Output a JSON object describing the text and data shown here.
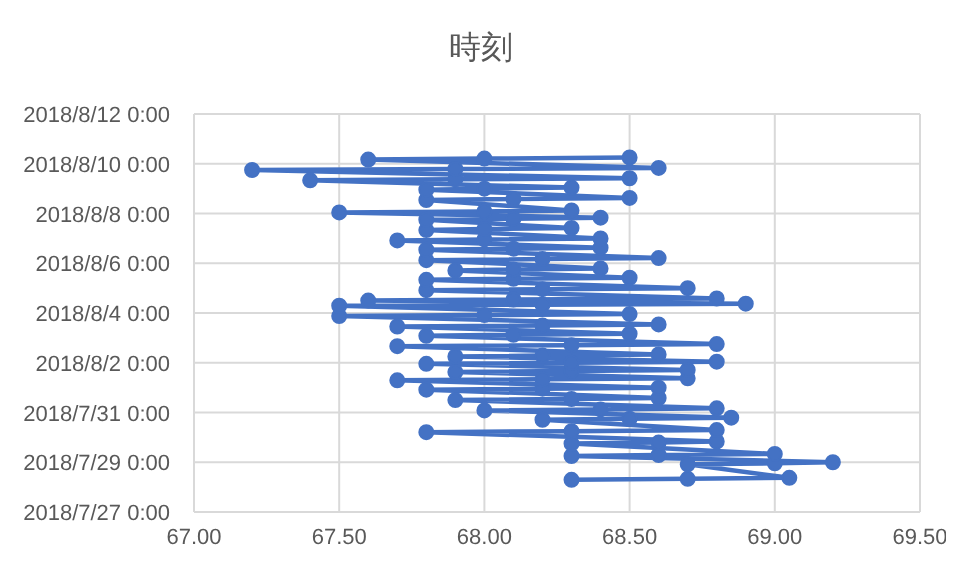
{
  "chart_data": {
    "type": "line",
    "orientation": "horizontal",
    "title": "時刻",
    "color": "#4472c4",
    "marker": "circle",
    "grid": true,
    "xlim": [
      67,
      69.5
    ],
    "xticks": [
      {
        "value": 67,
        "label": "67.00"
      },
      {
        "value": 67.5,
        "label": "67.50"
      },
      {
        "value": 68,
        "label": "68.00"
      },
      {
        "value": 68.5,
        "label": "68.50"
      },
      {
        "value": 69,
        "label": "69.00"
      },
      {
        "value": 69.5,
        "label": "69.50"
      }
    ],
    "ylim": [
      "2018-07-27T00:00",
      "2018-08-12T00:00"
    ],
    "yticks": [
      {
        "value": "2018-07-27T00:00",
        "label": "2018/7/27 0:00"
      },
      {
        "value": "2018-07-29T00:00",
        "label": "2018/7/29 0:00"
      },
      {
        "value": "2018-07-31T00:00",
        "label": "2018/7/31 0:00"
      },
      {
        "value": "2018-08-02T00:00",
        "label": "2018/8/2 0:00"
      },
      {
        "value": "2018-08-04T00:00",
        "label": "2018/8/4 0:00"
      },
      {
        "value": "2018-08-06T00:00",
        "label": "2018/8/6 0:00"
      },
      {
        "value": "2018-08-08T00:00",
        "label": "2018/8/8 0:00"
      },
      {
        "value": "2018-08-10T00:00",
        "label": "2018/8/10 0:00"
      },
      {
        "value": "2018-08-12T00:00",
        "label": "2018/8/12 0:00"
      }
    ],
    "values": [
      68.3,
      68.7,
      69.05,
      68.7,
      69.0,
      69.2,
      68.3,
      68.6,
      69.0,
      68.3,
      68.6,
      68.8,
      67.8,
      68.3,
      68.8,
      68.2,
      68.5,
      68.85,
      68.0,
      68.4,
      68.8,
      67.9,
      68.3,
      68.6,
      67.8,
      68.2,
      68.6,
      67.7,
      68.2,
      68.7,
      67.9,
      68.3,
      68.7,
      67.8,
      68.3,
      68.8,
      67.9,
      68.2,
      68.6,
      67.7,
      68.3,
      68.8,
      67.8,
      68.1,
      68.5,
      67.7,
      68.2,
      68.6,
      67.5,
      68.0,
      68.5,
      67.5,
      68.2,
      68.9,
      67.6,
      68.1,
      68.8,
      67.8,
      68.2,
      68.7,
      67.8,
      68.1,
      68.5,
      67.9,
      68.1,
      68.4,
      67.8,
      68.2,
      68.6,
      67.8,
      68.1,
      68.4,
      67.7,
      68.0,
      68.4,
      67.8,
      68.0,
      68.3,
      67.8,
      68.1,
      68.4,
      67.5,
      68.0,
      68.3,
      67.8,
      68.1,
      68.5,
      67.8,
      68.0,
      68.3,
      67.4,
      67.9,
      68.5,
      67.2,
      67.9,
      68.6,
      67.6,
      68.0,
      68.5
    ],
    "x": [
      "2018-07-28T07:00",
      "2018-07-28T08:00",
      "2018-07-28T09:00",
      "2018-07-28T22:00",
      "2018-07-28T23:00",
      "2018-07-29T00:00",
      "2018-07-29T06:00",
      "2018-07-29T07:00",
      "2018-07-29T08:00",
      "2018-07-29T18:00",
      "2018-07-29T19:00",
      "2018-07-29T20:00",
      "2018-07-30T05:00",
      "2018-07-30T06:00",
      "2018-07-30T07:00",
      "2018-07-30T17:00",
      "2018-07-30T18:00",
      "2018-07-30T19:00",
      "2018-07-31T02:00",
      "2018-07-31T03:00",
      "2018-07-31T04:00",
      "2018-07-31T12:00",
      "2018-07-31T13:00",
      "2018-07-31T14:00",
      "2018-07-31T22:00",
      "2018-07-31T23:00",
      "2018-08-01T00:00",
      "2018-08-01T07:00",
      "2018-08-01T08:00",
      "2018-08-01T09:00",
      "2018-08-01T15:00",
      "2018-08-01T16:00",
      "2018-08-01T17:00",
      "2018-08-01T23:00",
      "2018-08-02T00:00",
      "2018-08-02T01:00",
      "2018-08-02T06:00",
      "2018-08-02T07:00",
      "2018-08-02T08:00",
      "2018-08-02T16:00",
      "2018-08-02T17:00",
      "2018-08-02T18:00",
      "2018-08-03T02:00",
      "2018-08-03T03:00",
      "2018-08-03T04:00",
      "2018-08-03T11:00",
      "2018-08-03T12:00",
      "2018-08-03T13:00",
      "2018-08-03T21:00",
      "2018-08-03T22:00",
      "2018-08-03T23:00",
      "2018-08-04T07:00",
      "2018-08-04T08:00",
      "2018-08-04T09:00",
      "2018-08-04T12:00",
      "2018-08-04T13:00",
      "2018-08-04T14:00",
      "2018-08-04T22:00",
      "2018-08-04T23:00",
      "2018-08-05T00:00",
      "2018-08-05T08:00",
      "2018-08-05T09:00",
      "2018-08-05T10:00",
      "2018-08-05T17:00",
      "2018-08-05T18:00",
      "2018-08-05T19:00",
      "2018-08-06T03:00",
      "2018-08-06T04:00",
      "2018-08-06T05:00",
      "2018-08-06T13:00",
      "2018-08-06T14:00",
      "2018-08-06T15:00",
      "2018-08-06T22:00",
      "2018-08-06T23:00",
      "2018-08-07T00:00",
      "2018-08-07T08:00",
      "2018-08-07T09:00",
      "2018-08-07T10:00",
      "2018-08-07T18:00",
      "2018-08-07T19:00",
      "2018-08-07T20:00",
      "2018-08-08T01:00",
      "2018-08-08T02:00",
      "2018-08-08T03:00",
      "2018-08-08T13:00",
      "2018-08-08T14:00",
      "2018-08-08T15:00",
      "2018-08-08T23:00",
      "2018-08-09T00:00",
      "2018-08-09T01:00",
      "2018-08-09T08:00",
      "2018-08-09T09:00",
      "2018-08-09T10:00",
      "2018-08-09T18:00",
      "2018-08-09T19:00",
      "2018-08-09T20:00",
      "2018-08-10T04:00",
      "2018-08-10T05:00",
      "2018-08-10T06:00"
    ]
  }
}
